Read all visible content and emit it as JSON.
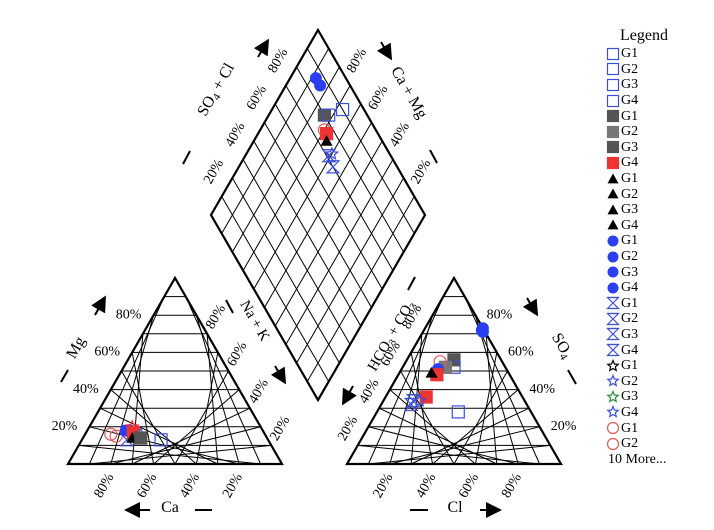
{
  "chart_data": {
    "type": "scatter",
    "subtype": "piper-diagram",
    "axis_labels": {
      "mg": "Mg",
      "ca": "Ca",
      "na_k": "Na + K",
      "hco3_co3": "HCO3 + CO3",
      "cl": "Cl",
      "so4": "SO4",
      "so4_cl": "SO4 + Cl",
      "ca_mg": "Ca + Mg"
    },
    "tick_labels": [
      "20%",
      "40%",
      "60%",
      "80%"
    ],
    "legend": {
      "title": "Legend",
      "more_label": "10 More...",
      "items": [
        {
          "label": "G1",
          "marker": "square-open",
          "color": "#3b4fd6"
        },
        {
          "label": "G2",
          "marker": "square-open",
          "color": "#3b4fd6"
        },
        {
          "label": "G3",
          "marker": "square-open",
          "color": "#3b4fd6"
        },
        {
          "label": "G4",
          "marker": "square-open",
          "color": "#3b4fd6"
        },
        {
          "label": "G1",
          "marker": "square",
          "color": "#555555"
        },
        {
          "label": "G2",
          "marker": "square",
          "color": "#777777"
        },
        {
          "label": "G3",
          "marker": "square",
          "color": "#555555"
        },
        {
          "label": "G4",
          "marker": "square",
          "color": "#ee3333"
        },
        {
          "label": "G1",
          "marker": "triangle",
          "color": "#000000"
        },
        {
          "label": "G2",
          "marker": "triangle",
          "color": "#000000"
        },
        {
          "label": "G3",
          "marker": "triangle",
          "color": "#000000"
        },
        {
          "label": "G4",
          "marker": "triangle",
          "color": "#000000"
        },
        {
          "label": "G1",
          "marker": "circle",
          "color": "#2a3ff0"
        },
        {
          "label": "G2",
          "marker": "circle",
          "color": "#2a3ff0"
        },
        {
          "label": "G3",
          "marker": "circle",
          "color": "#2a3ff0"
        },
        {
          "label": "G4",
          "marker": "circle",
          "color": "#2a3ff0"
        },
        {
          "label": "G1",
          "marker": "hourglass",
          "color": "#3b4fd6"
        },
        {
          "label": "G2",
          "marker": "hourglass",
          "color": "#3b4fd6"
        },
        {
          "label": "G3",
          "marker": "hourglass",
          "color": "#3b4fd6"
        },
        {
          "label": "G4",
          "marker": "hourglass",
          "color": "#3b4fd6"
        },
        {
          "label": "G1",
          "marker": "star",
          "color": "#000000"
        },
        {
          "label": "G2",
          "marker": "star",
          "color": "#3b4fd6"
        },
        {
          "label": "G3",
          "marker": "star",
          "color": "#2e8b3e"
        },
        {
          "label": "G4",
          "marker": "star",
          "color": "#3b4fd6"
        },
        {
          "label": "G1",
          "marker": "circle-open",
          "color": "#e05a5a"
        },
        {
          "label": "G2",
          "marker": "circle-open",
          "color": "#e05a5a"
        }
      ]
    },
    "points": {
      "cation": [
        {
          "ca": 72,
          "mg": 16,
          "marker": "circle-open",
          "color": "#e05a5a"
        },
        {
          "ca": 70,
          "mg": 15,
          "marker": "circle-open",
          "color": "#e05a5a"
        },
        {
          "ca": 66,
          "mg": 13,
          "marker": "hourglass",
          "color": "#3b4fd6"
        },
        {
          "ca": 64,
          "mg": 18,
          "marker": "circle",
          "color": "#2a3ff0"
        },
        {
          "ca": 62,
          "mg": 18,
          "marker": "circle",
          "color": "#2a3ff0"
        },
        {
          "ca": 61,
          "mg": 17,
          "marker": "square",
          "color": "#ee3333"
        },
        {
          "ca": 60,
          "mg": 20,
          "marker": "star",
          "color": "#ee3333"
        },
        {
          "ca": 58,
          "mg": 16,
          "marker": "star",
          "color": "#3b4fd6"
        },
        {
          "ca": 63,
          "mg": 14,
          "marker": "triangle",
          "color": "#000000"
        },
        {
          "ca": 50,
          "mg": 13,
          "marker": "square-open",
          "color": "#3b4fd6"
        },
        {
          "ca": 59,
          "mg": 14,
          "marker": "square",
          "color": "#555555"
        }
      ],
      "anion": [
        {
          "cl": 27,
          "so4": 73,
          "marker": "circle",
          "color": "#2a3ff0"
        },
        {
          "cl": 28,
          "so4": 71,
          "marker": "circle",
          "color": "#2a3ff0"
        },
        {
          "cl": 27,
          "so4": 72,
          "marker": "circle",
          "color": "#2a3ff0"
        },
        {
          "cl": 22,
          "so4": 56,
          "marker": "square",
          "color": "#555555"
        },
        {
          "cl": 24,
          "so4": 52,
          "marker": "square-open",
          "color": "#3b4fd6"
        },
        {
          "cl": 20,
          "so4": 52,
          "marker": "square",
          "color": "#777777"
        },
        {
          "cl": 16,
          "so4": 55,
          "marker": "circle-open",
          "color": "#e05a5a"
        },
        {
          "cl": 17,
          "so4": 51,
          "marker": "circle",
          "color": "#2a3ff0"
        },
        {
          "cl": 18,
          "so4": 48,
          "marker": "square",
          "color": "#ee3333"
        },
        {
          "cl": 15,
          "so4": 49,
          "marker": "triangle",
          "color": "#000000"
        },
        {
          "cl": 19,
          "so4": 36,
          "marker": "square",
          "color": "#ee3333"
        },
        {
          "cl": 14,
          "so4": 34,
          "marker": "hourglass",
          "color": "#3b4fd6"
        },
        {
          "cl": 17,
          "so4": 34,
          "marker": "star",
          "color": "#3b4fd6"
        },
        {
          "cl": 14,
          "so4": 32,
          "marker": "hourglass",
          "color": "#3b4fd6"
        },
        {
          "cl": 38,
          "so4": 28,
          "marker": "square-open",
          "color": "#3b4fd6"
        }
      ],
      "diamond": [
        {
          "so4_cl": 88,
          "ca_mg": 86,
          "marker": "circle",
          "color": "#2a3ff0"
        },
        {
          "so4_cl": 84,
          "ca_mg": 86,
          "marker": "circle",
          "color": "#2a3ff0"
        },
        {
          "so4_cl": 74,
          "ca_mg": 80,
          "marker": "square",
          "color": "#555555"
        },
        {
          "so4_cl": 72,
          "ca_mg": 82,
          "marker": "square-open",
          "color": "#3b4fd6"
        },
        {
          "so4_cl": 70,
          "ca_mg": 76,
          "marker": "circle-open",
          "color": "#e05a5a"
        },
        {
          "so4_cl": 68,
          "ca_mg": 76,
          "marker": "square",
          "color": "#ee3333"
        },
        {
          "so4_cl": 66,
          "ca_mg": 74,
          "marker": "triangle",
          "color": "#000000"
        },
        {
          "so4_cl": 61,
          "ca_mg": 71,
          "marker": "hourglass",
          "color": "#3b4fd6"
        },
        {
          "so4_cl": 60,
          "ca_mg": 73,
          "marker": "star",
          "color": "#3b4fd6"
        },
        {
          "so4_cl": 56,
          "ca_mg": 70,
          "marker": "hourglass",
          "color": "#3b4fd6"
        },
        {
          "so4_cl": 67,
          "ca_mg": 90,
          "marker": "square-open",
          "color": "#3b4fd6"
        }
      ]
    }
  }
}
